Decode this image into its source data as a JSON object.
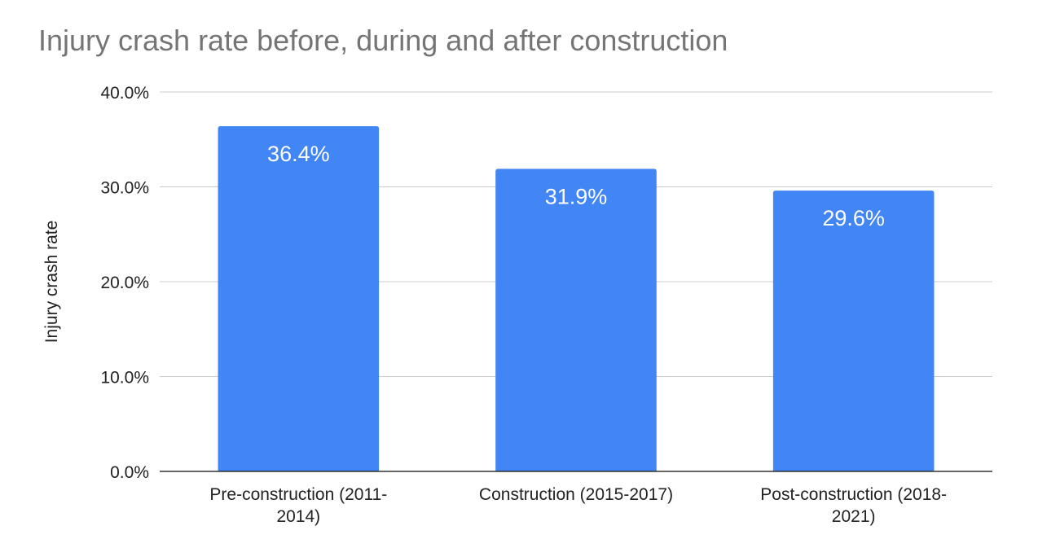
{
  "chart_data": {
    "type": "bar",
    "title": "Injury crash rate before, during and after construction",
    "xlabel": "",
    "ylabel": "Injury crash rate",
    "categories": [
      [
        "Pre-construction (2011-",
        "2014)"
      ],
      [
        "Construction (2015-2017)"
      ],
      [
        "Post-construction (2018-",
        "2021)"
      ]
    ],
    "values": [
      36.4,
      31.9,
      29.6
    ],
    "data_labels": [
      "36.4%",
      "31.9%",
      "29.6%"
    ],
    "ylim": [
      0,
      40
    ],
    "yticks": [
      0,
      10,
      20,
      30,
      40
    ],
    "ytick_labels": [
      "0.0%",
      "10.0%",
      "20.0%",
      "30.0%",
      "40.0%"
    ],
    "grid": true,
    "legend": "none",
    "colors": {
      "bar": "#4285f4",
      "title": "#757575",
      "grid": "#cccccc",
      "text": "#222222",
      "label": "#ffffff"
    }
  }
}
